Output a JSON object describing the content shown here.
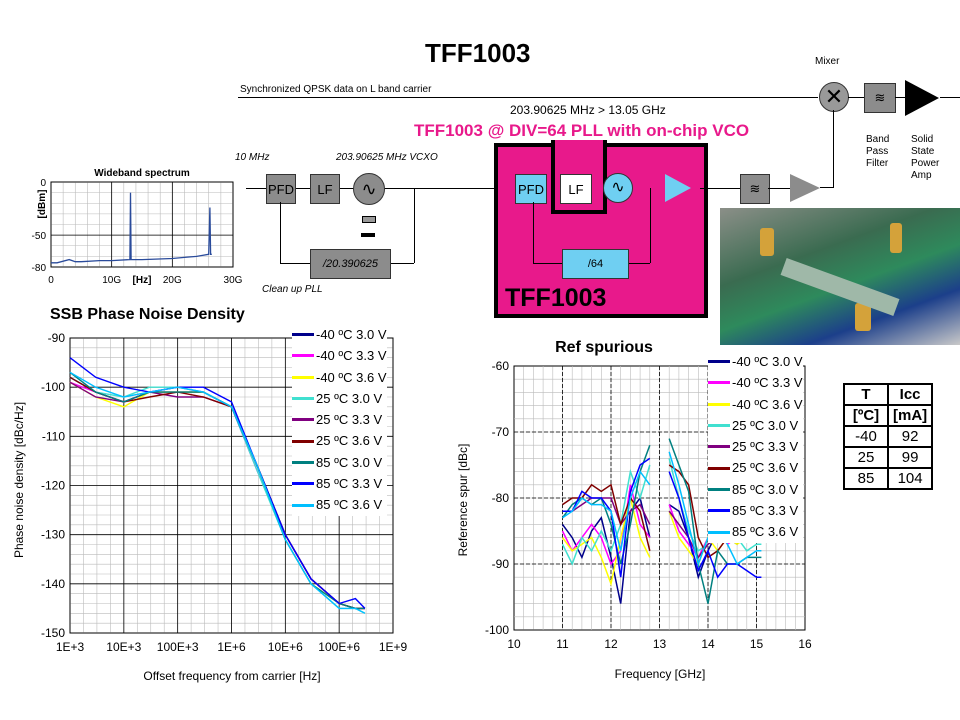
{
  "title": "TFF1003",
  "diagram": {
    "qpsk_label": "Synchronized QPSK data on L band carrier",
    "mixer_label": "Mixer",
    "bpf_label": "Band\nPass\nFilter",
    "ssp_label": "Solid\nState\nPower\nAmp",
    "freq_range": "203.90625  MHz > 13.05 GHz",
    "pll_title": "TFF1003 @ DIV=64 PLL with on-chip VCO",
    "ref_label": "10 MHz",
    "vcxo_label": "203.90625 MHz VCXO",
    "pfd": "PFD",
    "lf": "LF",
    "divider_cleanup": "/20.390625",
    "cleanup_label": "Clean up PLL",
    "divider_chip": "/64",
    "chip_label": "TFF1003",
    "colors": {
      "chip": "#e8198b",
      "chip_text": "#e8198b",
      "block": "#8c8c8c",
      "vco": "#6fcff2"
    }
  },
  "icc_table": {
    "headers": [
      [
        "T",
        "Icc"
      ],
      [
        "[ºC]",
        "[mA]"
      ]
    ],
    "rows": [
      [
        "-40",
        "92"
      ],
      [
        "25",
        "99"
      ],
      [
        "85",
        "104"
      ]
    ]
  },
  "legend": [
    "-40 ºC 3.0 V",
    "-40 ºC 3.3 V",
    "-40 ºC 3.6 V",
    "25 ºC 3.0 V",
    "25 ºC 3.3 V",
    "25 ºC 3.6 V",
    "85 ºC 3.0 V",
    "85 ºC 3.3 V",
    "85 ºC 3.6 V"
  ],
  "chart_data": [
    {
      "type": "line",
      "title": "Wideband spectrum",
      "ylabel": "[dBm]",
      "xlabel": "[Hz]",
      "xticks": [
        "0",
        "10G",
        "20G",
        "30G"
      ],
      "yticks": [
        "0",
        "-50",
        "-80"
      ],
      "xlim": [
        0,
        30
      ],
      "ylim": [
        -80,
        0
      ],
      "series": [
        {
          "x": [
            0,
            1,
            3,
            4,
            5,
            8,
            10,
            13,
            13.1,
            13.2,
            15,
            20,
            22,
            24,
            26,
            26.2,
            26.3,
            26.5
          ],
          "y": [
            -76,
            -76,
            -73,
            -75,
            -75,
            -74,
            -74,
            -73,
            -10,
            -73,
            -73,
            -72,
            -71,
            -70,
            -68,
            -24,
            -68,
            -68
          ],
          "color": "#2a4b9b"
        }
      ]
    },
    {
      "type": "line",
      "title": "SSB Phase Noise Density",
      "xlabel": "Offset frequency from carrier [Hz]",
      "ylabel": "Phase noise density [dBc/Hz]",
      "xscale": "log",
      "xlim": [
        1000,
        1000000000
      ],
      "ylim": [
        -150,
        -90
      ],
      "xticks": [
        "1E+3",
        "10E+3",
        "100E+3",
        "1E+6",
        "10E+6",
        "100E+6",
        "1E+9"
      ],
      "yticks": [
        "-90",
        "-100",
        "-110",
        "-120",
        "-130",
        "-140",
        "-150"
      ],
      "legend": "right",
      "grid": true,
      "x": [
        1000,
        3000,
        10000,
        30000,
        100000,
        300000,
        1000000,
        3000000,
        10000000,
        30000000,
        100000000,
        200000000,
        300000000
      ],
      "series": [
        {
          "name": "-40 ºC 3.0 V",
          "color": "#00008b",
          "y": [
            -98,
            -101,
            -103,
            -101,
            -101,
            -101,
            -104,
            -116,
            -130,
            -139,
            -144,
            -145,
            -145
          ]
        },
        {
          "name": "-40 ºC 3.3 V",
          "color": "#ff00ff",
          "y": [
            -99,
            -101,
            -103,
            -101,
            -100,
            -101,
            -104,
            -117,
            -130,
            -139,
            -144,
            -145,
            -145
          ]
        },
        {
          "name": "-40 ºC 3.6 V",
          "color": "#ffff00",
          "y": [
            -99,
            -102,
            -104,
            -101,
            -101,
            -101,
            -104,
            -116,
            -131,
            -140,
            -144,
            -145,
            -145
          ]
        },
        {
          "name": "25 ºC 3.0 V",
          "color": "#40e0d0",
          "y": [
            -98,
            -101,
            -102,
            -100,
            -100,
            -101,
            -104,
            -117,
            -131,
            -140,
            -145,
            -145,
            -146
          ]
        },
        {
          "name": "25 ºC 3.3 V",
          "color": "#800080",
          "y": [
            -99,
            -102,
            -103,
            -101,
            -102,
            -102,
            -104,
            -116,
            -130,
            -139,
            -144,
            -145,
            -145
          ]
        },
        {
          "name": "25 ºC 3.6 V",
          "color": "#800000",
          "y": [
            -98,
            -101,
            -103,
            -102,
            -101,
            -102,
            -104,
            -116,
            -130,
            -139,
            -144,
            -145,
            -145
          ]
        },
        {
          "name": "85 ºC 3.0 V",
          "color": "#008080",
          "y": [
            -97,
            -101,
            -103,
            -101,
            -101,
            -101,
            -104,
            -116,
            -131,
            -140,
            -144,
            -145,
            -145
          ]
        },
        {
          "name": "85 ºC 3.3 V",
          "color": "#0000ff",
          "y": [
            -94,
            -98,
            -100,
            -101,
            -100,
            -100,
            -103,
            -116,
            -130,
            -139,
            -144,
            -143,
            -145
          ]
        },
        {
          "name": "85 ºC 3.6 V",
          "color": "#00bfff",
          "y": [
            -97,
            -100,
            -102,
            -101,
            -100,
            -101,
            -104,
            -116,
            -131,
            -140,
            -145,
            -145,
            -146
          ]
        }
      ]
    },
    {
      "type": "line",
      "title": "Ref spurious",
      "xlabel": "Frequency [GHz]",
      "ylabel": "Reference spur [dBc]",
      "xlim": [
        10,
        16
      ],
      "ylim": [
        -100,
        -60
      ],
      "xticks": [
        "10",
        "11",
        "12",
        "13",
        "14",
        "15",
        "16"
      ],
      "yticks": [
        "-60",
        "-70",
        "-80",
        "-90",
        "-100"
      ],
      "legend": "right",
      "grid": true,
      "x": [
        11,
        11.2,
        11.4,
        11.6,
        11.8,
        12,
        12.2,
        12.4,
        12.6,
        12.8,
        13,
        13.2,
        13.4,
        13.6,
        13.8,
        14,
        14.2,
        14.4,
        14.6,
        14.8,
        15,
        15.1
      ],
      "series": [
        {
          "name": "-40 ºC 3.0 V",
          "color": "#00008b",
          "y": [
            -84,
            -86,
            -89,
            -85,
            -83,
            -89,
            -96,
            -82,
            -80,
            -86,
            null,
            -81,
            -82,
            -86,
            -92,
            -88,
            -85,
            -86,
            -87,
            -85,
            -86,
            -86
          ]
        },
        {
          "name": "-40 ºC 3.3 V",
          "color": "#ff00ff",
          "y": [
            -85,
            -88,
            -86,
            -84,
            -86,
            -90,
            -88,
            -78,
            -84,
            -86,
            null,
            -81,
            -85,
            -87,
            -89,
            -86,
            -85,
            -87,
            -86,
            -85,
            -85,
            -85
          ]
        },
        {
          "name": "-40 ºC 3.6 V",
          "color": "#ffff00",
          "y": [
            -86,
            -88,
            -87,
            -86,
            -89,
            -93,
            -86,
            -80,
            -86,
            -89,
            null,
            -82,
            -86,
            -88,
            -90,
            -86,
            -88,
            -86,
            -87,
            -86,
            -86,
            -86
          ]
        },
        {
          "name": "25 ºC 3.0 V",
          "color": "#40e0d0",
          "y": [
            -87,
            -90,
            -86,
            -88,
            -85,
            -88,
            -84,
            -76,
            -80,
            -75,
            null,
            -74,
            -80,
            -85,
            -88,
            -87,
            -84,
            -85,
            -86,
            -88,
            -87,
            -87
          ]
        },
        {
          "name": "25 ºC 3.3 V",
          "color": "#800080",
          "y": [
            -82,
            -82,
            -81,
            -80,
            -80,
            -80,
            -84,
            -82,
            -81,
            -84,
            null,
            -82,
            -84,
            -86,
            -89,
            -87,
            -86,
            -85,
            -85,
            -86,
            -84,
            -84
          ]
        },
        {
          "name": "25 ºC 3.6 V",
          "color": "#800000",
          "y": [
            -81,
            -80,
            -80,
            -78,
            -79,
            -78,
            -84,
            -80,
            -82,
            -88,
            null,
            -75,
            -76,
            -78,
            -86,
            -89,
            -88,
            -86,
            -86,
            -85,
            -85,
            -85
          ]
        },
        {
          "name": "85 ºC 3.0 V",
          "color": "#008080",
          "y": [
            -83,
            -81,
            -80,
            -81,
            -80,
            -84,
            -90,
            -84,
            -76,
            -72,
            null,
            -71,
            -75,
            -79,
            -90,
            -96,
            -88,
            -90,
            -90,
            -89,
            -89,
            -89
          ]
        },
        {
          "name": "85 ºC 3.3 V",
          "color": "#0000ff",
          "y": [
            -82,
            -82,
            -79,
            -80,
            -80,
            -82,
            -92,
            -79,
            -75,
            -74,
            null,
            -76,
            -80,
            -86,
            -91,
            -88,
            -92,
            -90,
            -90,
            -91,
            -92,
            -92
          ]
        },
        {
          "name": "85 ºC 3.6 V",
          "color": "#00bfff",
          "y": [
            -83,
            -82,
            -80,
            -81,
            -81,
            -82,
            -88,
            -80,
            -76,
            -78,
            null,
            -73,
            -78,
            -84,
            -90,
            -86,
            -84,
            -87,
            -90,
            -89,
            -88,
            -88
          ]
        }
      ]
    }
  ]
}
